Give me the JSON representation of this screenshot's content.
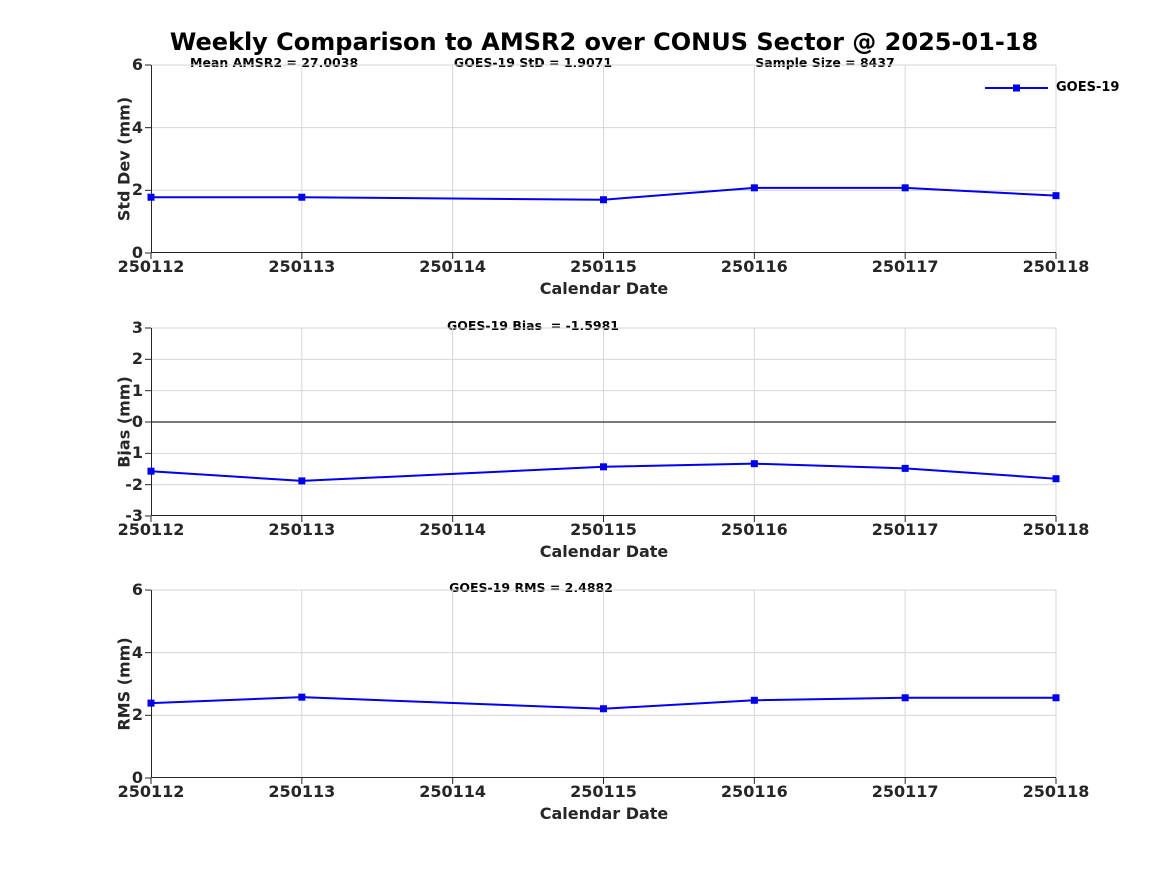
{
  "title": "Weekly Comparison to AMSR2 over CONUS Sector @ 2025-01-18",
  "legend": {
    "label": "GOES-19",
    "color": "#0000ee",
    "marker": "square",
    "position": "top-right"
  },
  "colors": {
    "line": "#0000ee",
    "grid": "#d6d6d6",
    "axis": "#262626",
    "zero_line": "#4d4d4d",
    "text": "#000000"
  },
  "chart_data": [
    {
      "type": "line",
      "name": "std-dev",
      "title": "",
      "xlabel": "Calendar Date",
      "ylabel": "Std Dev (mm)",
      "ylim": [
        0,
        6
      ],
      "yticks": [
        0,
        2,
        4,
        6
      ],
      "grid": true,
      "zero_line": false,
      "categories": [
        "250112",
        "250113",
        "250114",
        "250115",
        "250116",
        "250117",
        "250118"
      ],
      "series": [
        {
          "name": "GOES-19",
          "color": "#0000ee",
          "values": [
            1.78,
            1.78,
            null,
            1.7,
            2.08,
            2.08,
            1.83
          ]
        }
      ],
      "annotations": [
        {
          "text": "Mean AMSR2 = 27.0038"
        },
        {
          "text": "GOES-19 StD = 1.9071"
        },
        {
          "text": "Sample Size = 8437"
        }
      ]
    },
    {
      "type": "line",
      "name": "bias",
      "title": "",
      "xlabel": "Calendar Date",
      "ylabel": "Bias (mm)",
      "ylim": [
        -3,
        3
      ],
      "yticks": [
        -3,
        -2,
        -1,
        0,
        1,
        2,
        3
      ],
      "grid": true,
      "zero_line": true,
      "categories": [
        "250112",
        "250113",
        "250114",
        "250115",
        "250116",
        "250117",
        "250118"
      ],
      "series": [
        {
          "name": "GOES-19",
          "color": "#0000ee",
          "values": [
            -1.57,
            -1.88,
            null,
            -1.43,
            -1.33,
            -1.48,
            -1.81
          ]
        }
      ],
      "annotations": [
        {
          "text": "GOES-19 Bias  = -1.5981"
        }
      ]
    },
    {
      "type": "line",
      "name": "rms",
      "title": "",
      "xlabel": "Calendar Date",
      "ylabel": "RMS (mm)",
      "ylim": [
        0,
        6
      ],
      "yticks": [
        0,
        2,
        4,
        6
      ],
      "grid": true,
      "zero_line": false,
      "categories": [
        "250112",
        "250113",
        "250114",
        "250115",
        "250116",
        "250117",
        "250118"
      ],
      "series": [
        {
          "name": "GOES-19",
          "color": "#0000ee",
          "values": [
            2.39,
            2.58,
            null,
            2.21,
            2.48,
            2.56,
            2.56
          ]
        }
      ],
      "annotations": [
        {
          "text": "GOES-19 RMS = 2.4882"
        }
      ]
    }
  ]
}
